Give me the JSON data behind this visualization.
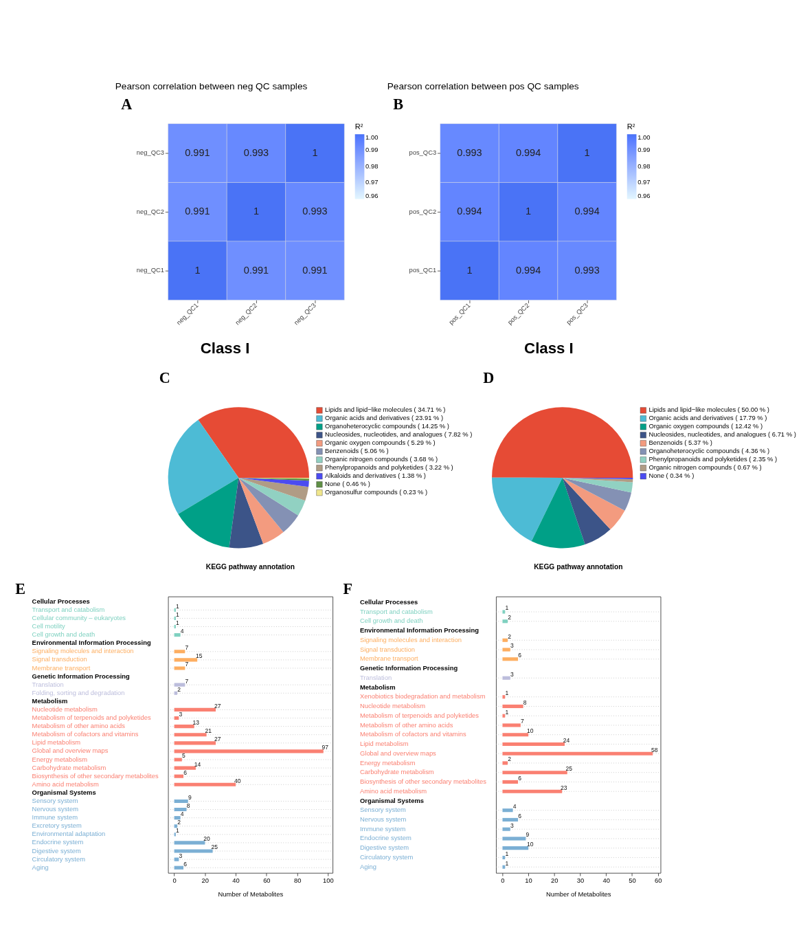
{
  "chart_data": [
    {
      "type": "heatmap",
      "annotations": [
        "A"
      ],
      "title": "Pearson correlation between neg QC samples",
      "categories": [
        "neg_QC1",
        "neg_QC2",
        "neg_QC3"
      ],
      "y_categories": [
        "neg_QC3",
        "neg_QC2",
        "neg_QC1"
      ],
      "cells": [
        [
          0.991,
          0.993,
          1
        ],
        [
          0.991,
          1,
          0.993
        ],
        [
          1,
          0.991,
          0.991
        ]
      ],
      "data_labels": true,
      "clabel": "R²",
      "clim": [
        0.96,
        1
      ],
      "cticks": [
        {
          "value": 1,
          "label": "1.00"
        },
        0.99,
        0.98,
        0.97,
        0.96
      ]
    },
    {
      "type": "heatmap",
      "annotations": [
        "B"
      ],
      "title": "Pearson correlation between pos QC samples",
      "categories": [
        "pos_QC1",
        "pos_QC2",
        "pos_QC3"
      ],
      "y_categories": [
        "pos_QC3",
        "pos_QC2",
        "pos_QC1"
      ],
      "cells": [
        [
          0.993,
          0.994,
          1
        ],
        [
          0.994,
          1,
          0.994
        ],
        [
          1,
          0.994,
          0.993
        ]
      ],
      "data_labels": true,
      "clabel": "R²",
      "clim": [
        0.96,
        1
      ],
      "cticks": [
        {
          "value": 1,
          "label": "1.00"
        },
        0.99,
        0.98,
        0.97,
        0.96
      ]
    },
    {
      "type": "pie",
      "annotations": [
        "C"
      ],
      "title": "Class I",
      "legend": "right",
      "categories": [
        "Lipids and lipid−like molecules",
        "Organic acids and derivatives",
        "Organoheterocyclic compounds",
        "Nucleosides, nucleotides, and analogues",
        "Organic oxygen compounds",
        "Benzenoids",
        "Organic nitrogen compounds",
        "Phenylpropanoids and polyketides",
        "Alkaloids and derivatives",
        "None",
        "Organosulfur compounds"
      ],
      "values": [
        34.71,
        23.91,
        14.25,
        7.82,
        5.29,
        5.06,
        3.68,
        3.22,
        1.38,
        0.46,
        0.23
      ],
      "value_labels": [
        "( 34.71 % )",
        "( 23.91 % )",
        "( 14.25 % )",
        "( 7.82 % )",
        "( 5.29 % )",
        "( 5.06 % )",
        "( 3.68 % )",
        "( 3.22 % )",
        "( 1.38 % )",
        "( 0.46 % )",
        "( 0.23 % )"
      ],
      "colors": [
        "#e64b35",
        "#4dbbd5",
        "#00a087",
        "#3c5488",
        "#f39b7f",
        "#8491b4",
        "#91d1c2",
        "#b09c85",
        "#4b4bf0",
        "#5f8f45",
        "#f0e68c"
      ]
    },
    {
      "type": "pie",
      "annotations": [
        "D"
      ],
      "title": "Class I",
      "legend": "right",
      "categories": [
        "Lipids and lipid−like molecules",
        "Organic acids and derivatives",
        "Organic oxygen compounds",
        "Nucleosides, nucleotides, and analogues",
        "Benzenoids",
        "Organoheterocyclic compounds",
        "Phenylpropanoids and polyketides",
        "Organic nitrogen compounds",
        "None"
      ],
      "values": [
        50.0,
        17.79,
        12.42,
        6.71,
        5.37,
        4.36,
        2.35,
        0.67,
        0.34
      ],
      "value_labels": [
        "( 50.00 % )",
        "( 17.79 % )",
        "( 12.42 % )",
        "( 6.71 % )",
        "( 5.37 % )",
        "( 4.36 % )",
        "( 2.35 % )",
        "( 0.67 % )",
        "( 0.34 % )"
      ],
      "colors": [
        "#e64b35",
        "#4dbbd5",
        "#00a087",
        "#3c5488",
        "#f39b7f",
        "#8491b4",
        "#91d1c2",
        "#b09c85",
        "#4b4bf0"
      ]
    },
    {
      "type": "bar",
      "orientation": "horizontal",
      "annotations": [
        "E"
      ],
      "title": "KEGG pathway annotation",
      "xlabel": "Number of Metabolites",
      "categories": [
        "Cellular Processes",
        "Transport and catabolism",
        "Cellular community – eukaryotes",
        "Cell motility",
        "Cell growth and death",
        "Environmental Information Processing",
        "Signaling molecules and interaction",
        "Signal transduction",
        "Membrane transport",
        "Genetic Information Processing",
        "Translation",
        "Folding, sorting and degradation",
        "Metabolism",
        "Nucleotide metabolism",
        "Metabolism of terpenoids and polyketides",
        "Metabolism of other amino acids",
        "Metabolism of cofactors and vitamins",
        "Lipid metabolism",
        "Global and overview maps",
        "Energy metabolism",
        "Carbohydrate metabolism",
        "Biosynthesis of other secondary metabolites",
        "Amino acid metabolism",
        "Organismal Systems",
        "Sensory system",
        "Nervous system",
        "Immune system",
        "Excretory system",
        "Environmental adaptation",
        "Endocrine system",
        "Digestive system",
        "Circulatory system",
        "Aging"
      ],
      "values": [
        null,
        1,
        1,
        1,
        4,
        null,
        7,
        15,
        7,
        null,
        7,
        2,
        null,
        27,
        3,
        13,
        21,
        27,
        97,
        5,
        14,
        6,
        40,
        null,
        9,
        8,
        4,
        2,
        1,
        20,
        25,
        3,
        6
      ],
      "colors": [
        null,
        "#7fd1c0",
        "#7fd1c0",
        "#7fd1c0",
        "#7fd1c0",
        null,
        "#fdae61",
        "#fdae61",
        "#fdae61",
        null,
        "#bcbddc",
        "#bcbddc",
        null,
        "#fa8072",
        "#fa8072",
        "#fa8072",
        "#fa8072",
        "#fa8072",
        "#fa8072",
        "#fa8072",
        "#fa8072",
        "#fa8072",
        "#fa8072",
        null,
        "#7bafd4",
        "#7bafd4",
        "#7bafd4",
        "#7bafd4",
        "#7bafd4",
        "#7bafd4",
        "#7bafd4",
        "#7bafd4",
        "#7bafd4"
      ],
      "data_labels": true,
      "grid": "y",
      "xlim": [
        -4,
        103
      ],
      "xticks": [
        0,
        20,
        40,
        60,
        80,
        100
      ]
    },
    {
      "type": "bar",
      "orientation": "horizontal",
      "annotations": [
        "F"
      ],
      "title": "KEGG pathway annotation",
      "xlabel": "Number of Metabolites",
      "categories": [
        "Cellular Processes",
        "Transport and catabolism",
        "Cell growth and death",
        "Environmental Information Processing",
        "Signaling molecules and interaction",
        "Signal transduction",
        "Membrane transport",
        "Genetic Information Processing",
        "Translation",
        "Metabolism",
        "Xenobiotics biodegradation and metabolism",
        "Nucleotide metabolism",
        "Metabolism of terpenoids and polyketides",
        "Metabolism of other amino acids",
        "Metabolism of cofactors and vitamins",
        "Lipid metabolism",
        "Global and overview maps",
        "Energy metabolism",
        "Carbohydrate metabolism",
        "Biosynthesis of other secondary metabolites",
        "Amino acid metabolism",
        "Organismal Systems",
        "Sensory system",
        "Nervous system",
        "Immune system",
        "Endocrine system",
        "Digestive system",
        "Circulatory system",
        "Aging"
      ],
      "values": [
        null,
        1,
        2,
        null,
        2,
        3,
        6,
        null,
        3,
        null,
        1,
        8,
        1,
        7,
        10,
        24,
        58,
        2,
        25,
        6,
        23,
        null,
        4,
        6,
        3,
        9,
        10,
        1,
        1
      ],
      "colors": [
        null,
        "#7fd1c0",
        "#7fd1c0",
        null,
        "#fdae61",
        "#fdae61",
        "#fdae61",
        null,
        "#bcbddc",
        null,
        "#fa8072",
        "#fa8072",
        "#fa8072",
        "#fa8072",
        "#fa8072",
        "#fa8072",
        "#fa8072",
        "#fa8072",
        "#fa8072",
        "#fa8072",
        "#fa8072",
        null,
        "#7bafd4",
        "#7bafd4",
        "#7bafd4",
        "#7bafd4",
        "#7bafd4",
        "#7bafd4",
        "#7bafd4"
      ],
      "data_labels": true,
      "grid": "y",
      "xlim": [
        -2.5,
        61
      ],
      "xticks": [
        0,
        10,
        20,
        30,
        40,
        50,
        60
      ]
    }
  ]
}
